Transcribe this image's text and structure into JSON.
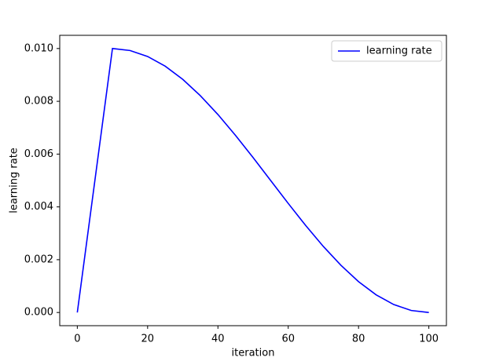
{
  "chart_data": {
    "type": "line",
    "xlabel": "iteration",
    "ylabel": "learning rate",
    "x": [
      0,
      5,
      10,
      15,
      20,
      25,
      30,
      35,
      40,
      45,
      50,
      55,
      60,
      65,
      70,
      75,
      80,
      85,
      90,
      95,
      100
    ],
    "series": [
      {
        "name": "learning rate",
        "color": "#0000ff",
        "values": [
          0,
          0.005,
          0.01,
          0.009924,
          0.009698,
          0.00933,
          0.00883,
          0.008214,
          0.0075,
          0.00671,
          0.005868,
          0.005,
          0.004132,
          0.00329,
          0.0025,
          0.001786,
          0.00117,
          0.00067,
          0.000302,
          7.6e-05,
          0
        ]
      }
    ],
    "xlim": [
      -5,
      105
    ],
    "xticks": [
      0,
      20,
      40,
      60,
      80,
      100
    ],
    "ylim": [
      -0.0005,
      0.0105
    ],
    "yticks": [
      {
        "value": 0,
        "label": "0.000"
      },
      {
        "value": 0.002,
        "label": "0.002"
      },
      {
        "value": 0.004,
        "label": "0.004"
      },
      {
        "value": 0.006,
        "label": "0.006"
      },
      {
        "value": 0.008,
        "label": "0.008"
      },
      {
        "value": 0.01,
        "label": "0.010"
      }
    ],
    "legend": "upper right",
    "grid": false
  }
}
